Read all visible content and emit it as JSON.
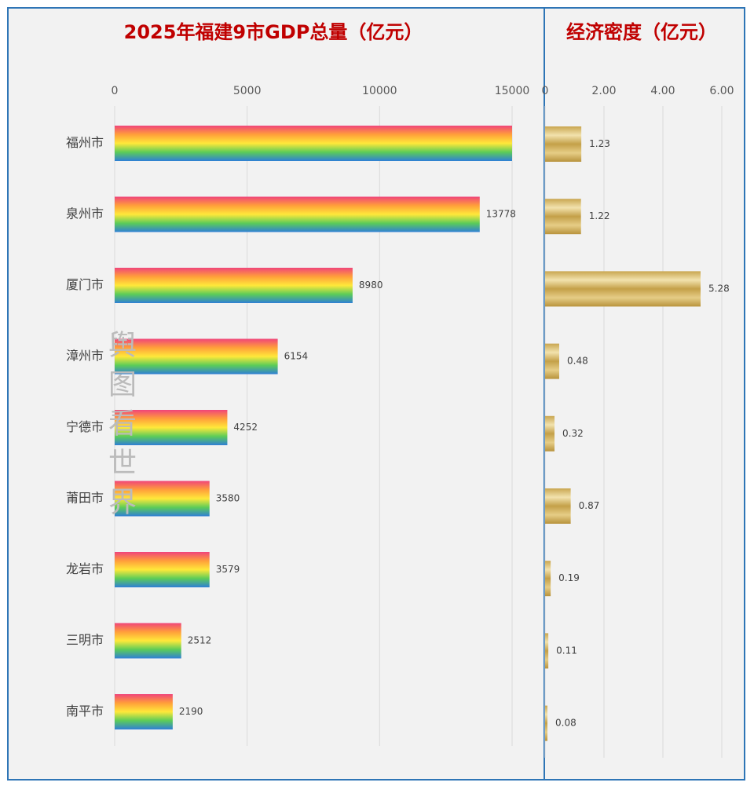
{
  "chart_data": [
    {
      "type": "bar",
      "orientation": "horizontal",
      "title": "2025年福建9市GDP总量（亿元）",
      "categories": [
        "福州市",
        "泉州市",
        "厦门市",
        "漳州市",
        "宁德市",
        "莆田市",
        "龙岩市",
        "三明市",
        "南平市"
      ],
      "values": [
        15000,
        13778,
        8980,
        6154,
        4252,
        3580,
        3579,
        2512,
        2190
      ],
      "value_labels": [
        null,
        "13778",
        "8980",
        "6154",
        "4252",
        "3580",
        "3579",
        "2512",
        "2190"
      ],
      "colors": [
        "#f0457a",
        "#ff9f3a",
        "#ffe83a",
        "#5ccc58",
        "#2f7fd6"
      ],
      "xlim": [
        0,
        15000
      ],
      "xticks": [
        0,
        5000,
        10000,
        15000
      ],
      "grid": true
    },
    {
      "type": "bar",
      "orientation": "horizontal",
      "title": "经济密度（亿元）",
      "values": [
        1.23,
        1.22,
        5.28,
        0.48,
        0.32,
        0.87,
        0.19,
        0.11,
        0.08
      ],
      "colors": [
        "#c9a650",
        "#f2e2ad",
        "#c4a048",
        "#e6cd86",
        "#b8933c"
      ],
      "xlim": [
        0,
        6
      ],
      "xticks": [
        0,
        {
          "value": 2,
          "label": "2.00"
        },
        {
          "value": 4,
          "label": "4.00"
        },
        {
          "value": 6,
          "label": "6.00"
        }
      ],
      "grid": true
    }
  ],
  "watermark": "舆图看世界"
}
